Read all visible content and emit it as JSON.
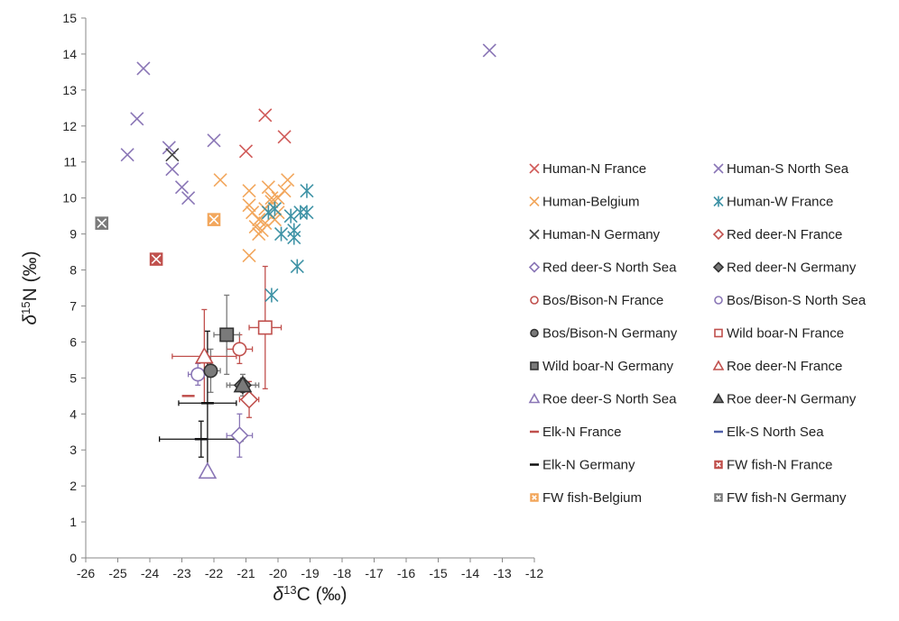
{
  "chart_data": {
    "type": "scatter",
    "xlabel": "δ13C (‰)",
    "ylabel": "δ15N (‰)",
    "xlim": [
      -26,
      -12
    ],
    "ylim": [
      0,
      15
    ],
    "xticks": [
      "-26",
      "-25",
      "-24",
      "-23",
      "-22",
      "-21",
      "-20",
      "-19",
      "-18",
      "-17",
      "-16",
      "-15",
      "-14",
      "-13",
      "-12"
    ],
    "yticks": [
      "0",
      "1",
      "2",
      "3",
      "4",
      "5",
      "6",
      "7",
      "8",
      "9",
      "10",
      "11",
      "12",
      "13",
      "14",
      "15"
    ],
    "grid": false,
    "legend_position": "right",
    "series": [
      {
        "name": "Human-N France",
        "marker": "x",
        "color": "#d05a58",
        "points": [
          [
            -21.0,
            11.3
          ],
          [
            -20.4,
            12.3
          ],
          [
            -19.8,
            11.7
          ]
        ]
      },
      {
        "name": "Human-S North Sea",
        "marker": "x",
        "color": "#8a76b6",
        "points": [
          [
            -24.2,
            13.6
          ],
          [
            -24.4,
            12.2
          ],
          [
            -24.7,
            11.2
          ],
          [
            -23.4,
            11.4
          ],
          [
            -23.3,
            10.8
          ],
          [
            -23.0,
            10.3
          ],
          [
            -22.8,
            10.0
          ],
          [
            -22.0,
            11.6
          ],
          [
            -13.4,
            14.1
          ]
        ]
      },
      {
        "name": "Human-Belgium",
        "marker": "x",
        "color": "#f2a75d",
        "points": [
          [
            -21.8,
            10.5
          ],
          [
            -20.9,
            10.2
          ],
          [
            -20.9,
            9.8
          ],
          [
            -20.8,
            9.6
          ],
          [
            -20.6,
            9.4
          ],
          [
            -20.5,
            9.1
          ],
          [
            -20.4,
            9.3
          ],
          [
            -20.3,
            9.6
          ],
          [
            -20.2,
            9.9
          ],
          [
            -20.3,
            10.3
          ],
          [
            -20.1,
            9.4
          ],
          [
            -20.0,
            9.6
          ],
          [
            -19.8,
            10.2
          ],
          [
            -19.7,
            10.5
          ],
          [
            -20.6,
            9.0
          ],
          [
            -20.9,
            8.4
          ],
          [
            -20.4,
            9.7
          ],
          [
            -20.0,
            10.0
          ],
          [
            -20.7,
            9.2
          ],
          [
            -20.2,
            10.0
          ]
        ]
      },
      {
        "name": "Human-W France",
        "marker": "asterisk",
        "color": "#3f93a6",
        "points": [
          [
            -20.1,
            9.7
          ],
          [
            -19.6,
            9.5
          ],
          [
            -19.5,
            9.1
          ],
          [
            -19.5,
            8.9
          ],
          [
            -19.3,
            9.6
          ],
          [
            -19.1,
            10.2
          ],
          [
            -19.1,
            9.6
          ],
          [
            -19.4,
            8.1
          ],
          [
            -20.2,
            7.3
          ],
          [
            -19.9,
            9.0
          ],
          [
            -20.3,
            9.6
          ]
        ]
      },
      {
        "name": "Human-N Germany",
        "marker": "x",
        "color": "#444444",
        "points": [
          [
            -23.3,
            11.2
          ]
        ]
      },
      {
        "name": "Red deer-N France",
        "marker": "diamond",
        "color": "#c0504d",
        "points": [
          {
            "x": -20.9,
            "y": 4.4,
            "xerr": 0.3,
            "yerr": 0.5
          }
        ]
      },
      {
        "name": "Red deer-S North Sea",
        "marker": "diamond",
        "color": "#8a76b6",
        "points": [
          {
            "x": -21.2,
            "y": 3.4,
            "xerr": 0.4,
            "yerr": 0.6
          }
        ]
      },
      {
        "name": "Red deer-N Germany",
        "marker": "diamond-filled",
        "color": "#7a7a7a",
        "points": [
          {
            "x": -21.1,
            "y": 4.8,
            "xerr": 0.4,
            "yerr": 0.3
          }
        ]
      },
      {
        "name": "Bos/Bison-N France",
        "marker": "circle",
        "color": "#c0504d",
        "points": [
          {
            "x": -21.2,
            "y": 5.8,
            "xerr": 0.4,
            "yerr": 0.4
          }
        ]
      },
      {
        "name": "Bos/Bison-S North Sea",
        "marker": "circle",
        "color": "#8a76b6",
        "points": [
          {
            "x": -22.5,
            "y": 5.1,
            "xerr": 0.3,
            "yerr": 0.3
          }
        ]
      },
      {
        "name": "Bos/Bison-N Germany",
        "marker": "circle-filled",
        "color": "#7a7a7a",
        "points": [
          {
            "x": -22.1,
            "y": 5.2,
            "xerr": 0.3,
            "yerr": 0.6
          }
        ]
      },
      {
        "name": "Wild boar-N France",
        "marker": "square",
        "color": "#c0504d",
        "points": [
          {
            "x": -20.4,
            "y": 6.4,
            "xerr": 0.5,
            "yerr": 1.7
          }
        ]
      },
      {
        "name": "Wild boar-N Germany",
        "marker": "square-filled",
        "color": "#7a7a7a",
        "points": [
          {
            "x": -21.6,
            "y": 6.2,
            "xerr": 0.4,
            "yerr": 1.1
          }
        ]
      },
      {
        "name": "Roe deer-N France",
        "marker": "triangle",
        "color": "#c0504d",
        "points": [
          {
            "x": -22.3,
            "y": 5.6,
            "xerr": 1.0,
            "yerr": 1.3
          }
        ]
      },
      {
        "name": "Roe deer-S North Sea",
        "marker": "triangle",
        "color": "#8a76b6",
        "points": [
          {
            "x": -22.2,
            "y": 2.4,
            "xerr": 0,
            "yerr": 0
          }
        ]
      },
      {
        "name": "Roe deer-N Germany",
        "marker": "triangle-filled",
        "color": "#7a7a7a",
        "points": [
          {
            "x": -21.1,
            "y": 4.8,
            "xerr": 0.5,
            "yerr": 0.2
          }
        ]
      },
      {
        "name": "Elk-N France",
        "marker": "dash",
        "color": "#c0504d",
        "points": [
          {
            "x": -22.8,
            "y": 4.5,
            "xerr": 0,
            "yerr": 0
          }
        ]
      },
      {
        "name": "Elk-S North Sea",
        "marker": "dash",
        "color": "#4f5fa8",
        "points": [
          {
            "x": -22.4,
            "y": 3.3,
            "xerr": 0,
            "yerr": 0
          }
        ]
      },
      {
        "name": "Elk-N Germany",
        "marker": "dash",
        "color": "#111111",
        "points": [
          {
            "x": -22.2,
            "y": 4.3,
            "xerr": 0.9,
            "yerr": 2.0
          },
          {
            "x": -22.4,
            "y": 3.3,
            "xerr": 1.3,
            "yerr": 0.5
          }
        ]
      },
      {
        "name": "FW fish-N France",
        "marker": "fish",
        "color": "#c0504d",
        "points": [
          [
            -23.8,
            8.3
          ]
        ]
      },
      {
        "name": "FW fish-Belgium",
        "marker": "fish",
        "color": "#f2a75d",
        "points": [
          [
            -22.0,
            9.4
          ]
        ]
      },
      {
        "name": "FW fish-N Germany",
        "marker": "fish",
        "color": "#7a7a7a",
        "points": [
          [
            -25.5,
            9.3
          ]
        ]
      }
    ]
  }
}
